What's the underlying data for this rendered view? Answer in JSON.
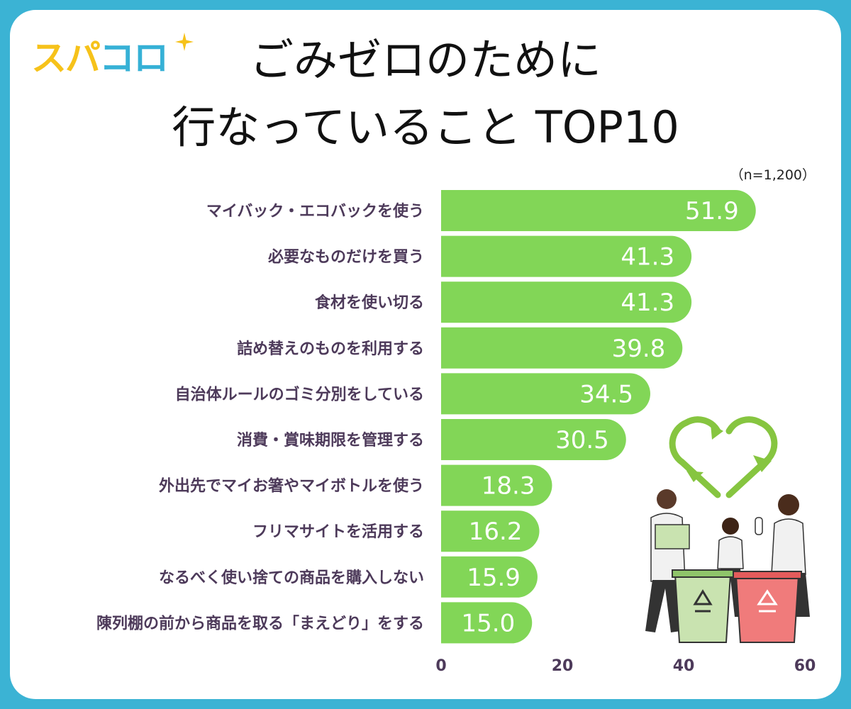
{
  "brand": {
    "logo_part1": "スパ",
    "logo_part2": "コロ"
  },
  "title_line1": "ごみゼロのために",
  "title_line2": "行なっていること TOP10",
  "sample_note": "（n=1,200）",
  "colors": {
    "frame": "#3bb3d4",
    "bar": "#82d657",
    "label": "#4d3a5a",
    "logo_yellow": "#f6c21a",
    "logo_blue": "#36b1d6"
  },
  "chart_data": {
    "type": "bar",
    "orientation": "horizontal",
    "title": "ごみゼロのために 行なっていること TOP10",
    "categories": [
      "マイバック・エコバックを使う",
      "必要なものだけを買う",
      "食材を使い切る",
      "詰め替えのものを利用する",
      "自治体ルールのゴミ分別をしている",
      "消費・賞味期限を管理する",
      "外出先でマイお箸やマイボトルを使う",
      "フリマサイトを活用する",
      "なるべく使い捨ての商品を購入しない",
      "陳列棚の前から商品を取る「まえどり」をする"
    ],
    "values": [
      51.9,
      41.3,
      41.3,
      39.8,
      34.5,
      30.5,
      18.3,
      16.2,
      15.9,
      15.0
    ],
    "value_labels": [
      "51.9",
      "41.3",
      "41.3",
      "39.8",
      "34.5",
      "30.5",
      "18.3",
      "16.2",
      "15.9",
      "15.0"
    ],
    "xlim": [
      0,
      60
    ],
    "xticks": [
      0,
      20,
      40,
      60
    ],
    "xtick_labels": [
      "0",
      "20",
      "40",
      "60"
    ],
    "grid": false,
    "legend": false
  }
}
